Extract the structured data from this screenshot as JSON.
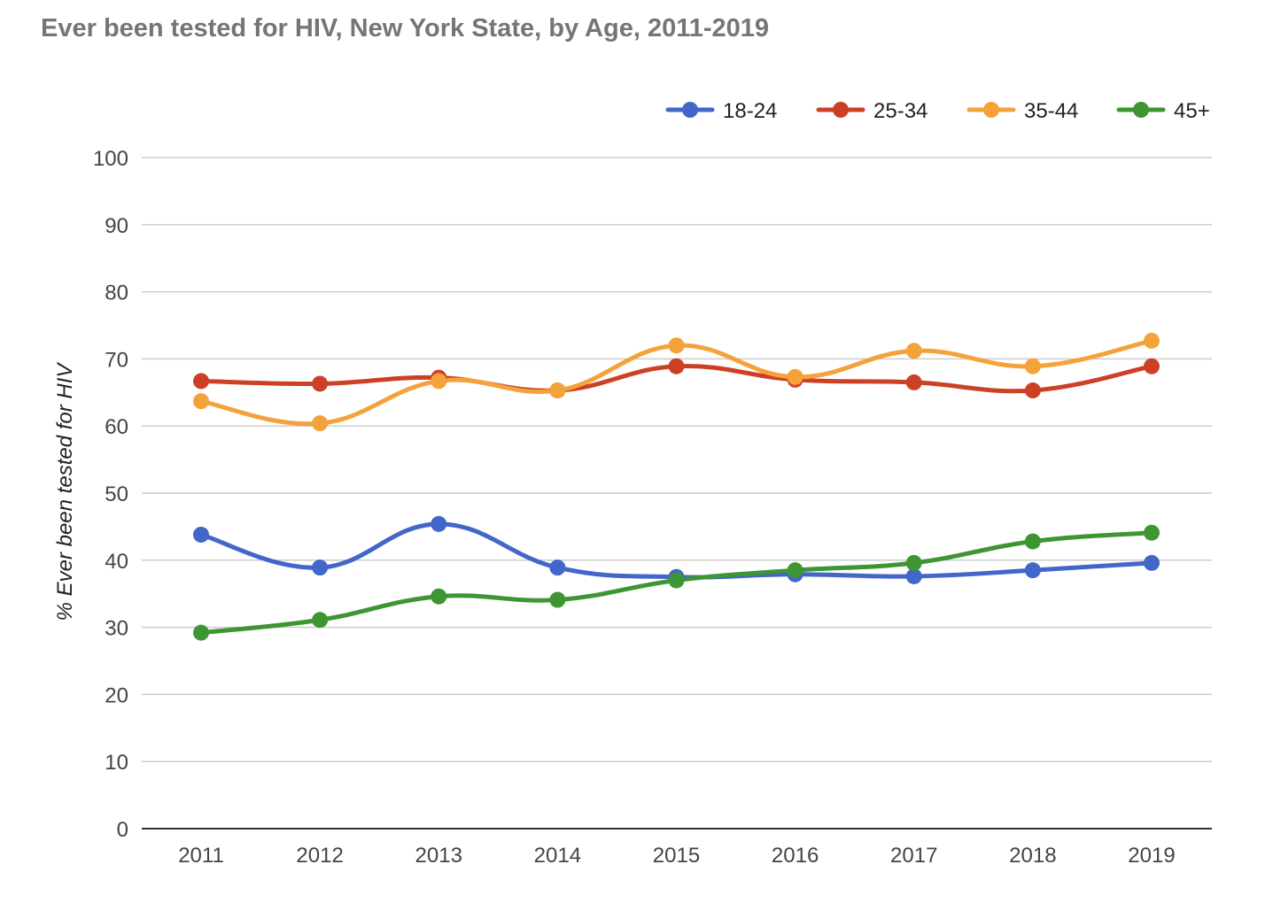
{
  "chart_data": {
    "type": "line",
    "title": "Ever been tested for HIV, New York State, by Age, 2011-2019",
    "xlabel": "",
    "ylabel": "% Ever been tested for HIV",
    "ylim": [
      0,
      100
    ],
    "yticks": [
      0,
      10,
      20,
      30,
      40,
      50,
      60,
      70,
      80,
      90,
      100
    ],
    "categories": [
      "2011",
      "2012",
      "2013",
      "2014",
      "2015",
      "2016",
      "2017",
      "2018",
      "2019"
    ],
    "grid": true,
    "legend_position": "top-right",
    "series": [
      {
        "name": "18-24",
        "color": "#4266c9",
        "values": [
          43.8,
          38.9,
          45.4,
          38.9,
          37.5,
          37.9,
          37.6,
          38.5,
          39.6
        ]
      },
      {
        "name": "25-34",
        "color": "#cc4125",
        "values": [
          66.7,
          66.3,
          67.2,
          65.3,
          68.9,
          66.9,
          66.5,
          65.3,
          68.9
        ]
      },
      {
        "name": "35-44",
        "color": "#f4a23a",
        "values": [
          63.7,
          60.4,
          66.7,
          65.3,
          72.0,
          67.3,
          71.2,
          68.9,
          72.7
        ]
      },
      {
        "name": "45+",
        "color": "#3d9632",
        "values": [
          29.2,
          31.1,
          34.6,
          34.1,
          37.0,
          38.5,
          39.6,
          42.8,
          44.1
        ]
      }
    ]
  }
}
